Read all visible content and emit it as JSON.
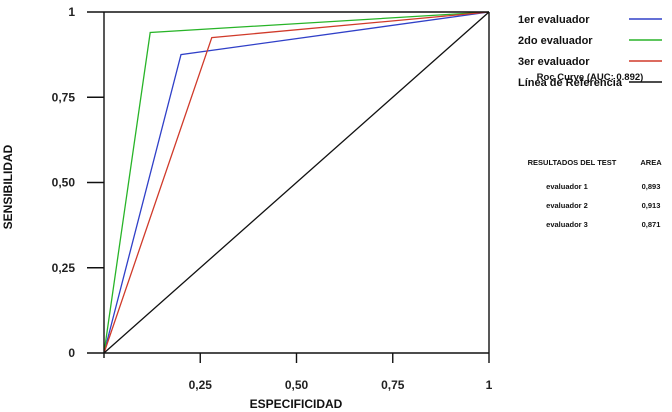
{
  "chart_data": {
    "type": "line",
    "xlabel": "ESPECIFICIDAD",
    "ylabel": "SENSIBILIDAD",
    "xlim": [
      0,
      1
    ],
    "ylim": [
      0,
      1
    ],
    "x_ticks": [
      {
        "value": 0.25,
        "label": "0,25"
      },
      {
        "value": 0.5,
        "label": "0,50"
      },
      {
        "value": 0.75,
        "label": "0,75"
      },
      {
        "value": 1,
        "label": "1"
      }
    ],
    "y_ticks": [
      {
        "value": 0,
        "label": "0"
      },
      {
        "value": 0.25,
        "label": "0,25"
      },
      {
        "value": 0.5,
        "label": "0,50"
      },
      {
        "value": 0.75,
        "label": "0,75"
      },
      {
        "value": 1,
        "label": "1"
      }
    ],
    "grid": false,
    "legend_position": "top-right",
    "series": [
      {
        "name": "1er evaluador",
        "color": "#3040c8",
        "points": [
          [
            0,
            0
          ],
          [
            0.2,
            0.875
          ],
          [
            1,
            1
          ]
        ]
      },
      {
        "name": "2do evaluador",
        "color": "#28b428",
        "points": [
          [
            0,
            0
          ],
          [
            0.12,
            0.94
          ],
          [
            1,
            1
          ]
        ]
      },
      {
        "name": "3er evaluador",
        "color": "#d03a2a",
        "points": [
          [
            0,
            0
          ],
          [
            0.28,
            0.925
          ],
          [
            1,
            1
          ]
        ]
      },
      {
        "name": "Línea de Referencia",
        "color": "#111111",
        "points": [
          [
            0,
            0
          ],
          [
            1,
            1
          ]
        ]
      }
    ],
    "annotation": "Roc Curve (AUC: 0.892)",
    "results_table": {
      "headers": [
        "RESULTADOS DEL TEST",
        "AREA"
      ],
      "rows": [
        [
          "evaluador 1",
          "0,893"
        ],
        [
          "evaluador 2",
          "0,913"
        ],
        [
          "evaluador 3",
          "0,871"
        ]
      ]
    }
  }
}
